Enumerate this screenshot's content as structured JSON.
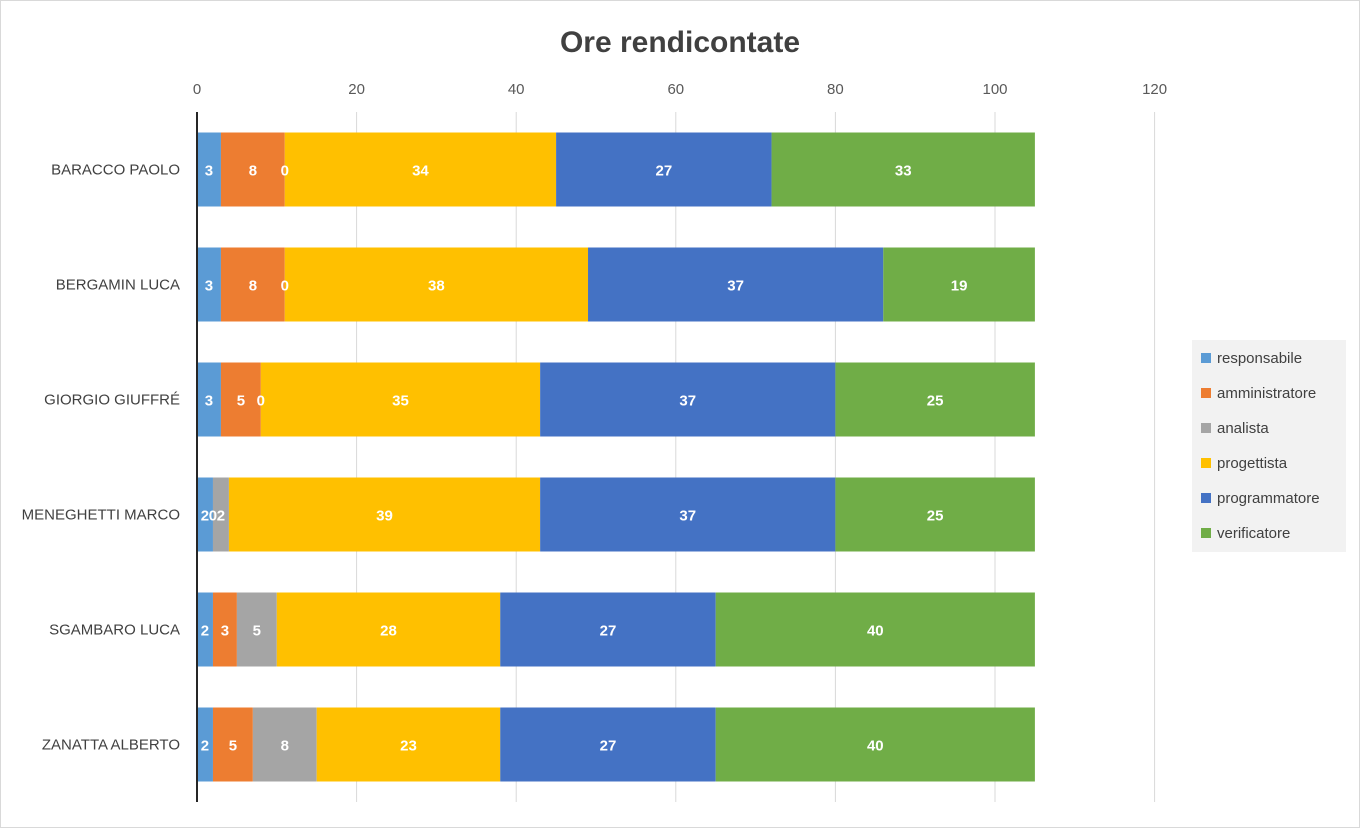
{
  "chart_data": {
    "type": "bar",
    "orientation": "horizontal",
    "stacked": true,
    "title": "Ore rendicontate",
    "categories": [
      "BARACCO PAOLO",
      "BERGAMIN LUCA",
      "GIORGIO GIUFFRÉ",
      "MENEGHETTI MARCO",
      "SGAMBARO LUCA",
      "ZANATTA ALBERTO"
    ],
    "series": [
      {
        "name": "responsabile",
        "color": "#5b9bd5",
        "values": [
          3,
          3,
          3,
          2,
          2,
          2
        ]
      },
      {
        "name": "amministratore",
        "color": "#ed7d31",
        "values": [
          8,
          8,
          5,
          0,
          3,
          5
        ]
      },
      {
        "name": "analista",
        "color": "#a5a5a5",
        "values": [
          0,
          0,
          0,
          2,
          5,
          8
        ]
      },
      {
        "name": "progettista",
        "color": "#ffc000",
        "values": [
          34,
          38,
          35,
          39,
          28,
          23
        ]
      },
      {
        "name": "programmatore",
        "color": "#4472c4",
        "values": [
          27,
          37,
          37,
          37,
          27,
          27
        ]
      },
      {
        "name": "verificatore",
        "color": "#70ad47",
        "values": [
          33,
          19,
          25,
          25,
          40,
          40
        ]
      }
    ],
    "xlim": [
      0,
      120
    ],
    "xticks": [
      0,
      20,
      40,
      60,
      80,
      100,
      120
    ],
    "x_axis_position": "top",
    "grid": true,
    "legend": "right"
  }
}
